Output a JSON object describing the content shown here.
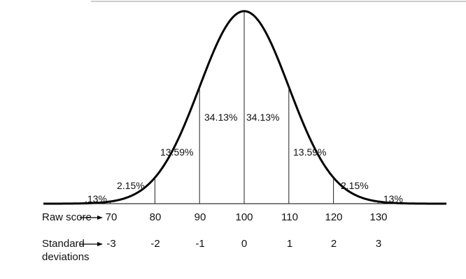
{
  "distribution": {
    "mean": 100,
    "sd": 10,
    "segments": [
      ".13%",
      "2.15%",
      "13.59%",
      "34.13%",
      "34.13%",
      "13.59%",
      "2.15%",
      ".13%"
    ]
  },
  "rows": {
    "raw_score": {
      "label": "Raw score",
      "values": [
        "70",
        "80",
        "90",
        "100",
        "110",
        "120",
        "130"
      ]
    },
    "standard_deviations": {
      "label_line1": "Standard",
      "label_line2": "deviations",
      "values": [
        "-3",
        "-2",
        "-1",
        "0",
        "1",
        "2",
        "3"
      ]
    }
  },
  "colors": {
    "curve": "#000000",
    "lines": "#222222",
    "text": "#111111"
  }
}
